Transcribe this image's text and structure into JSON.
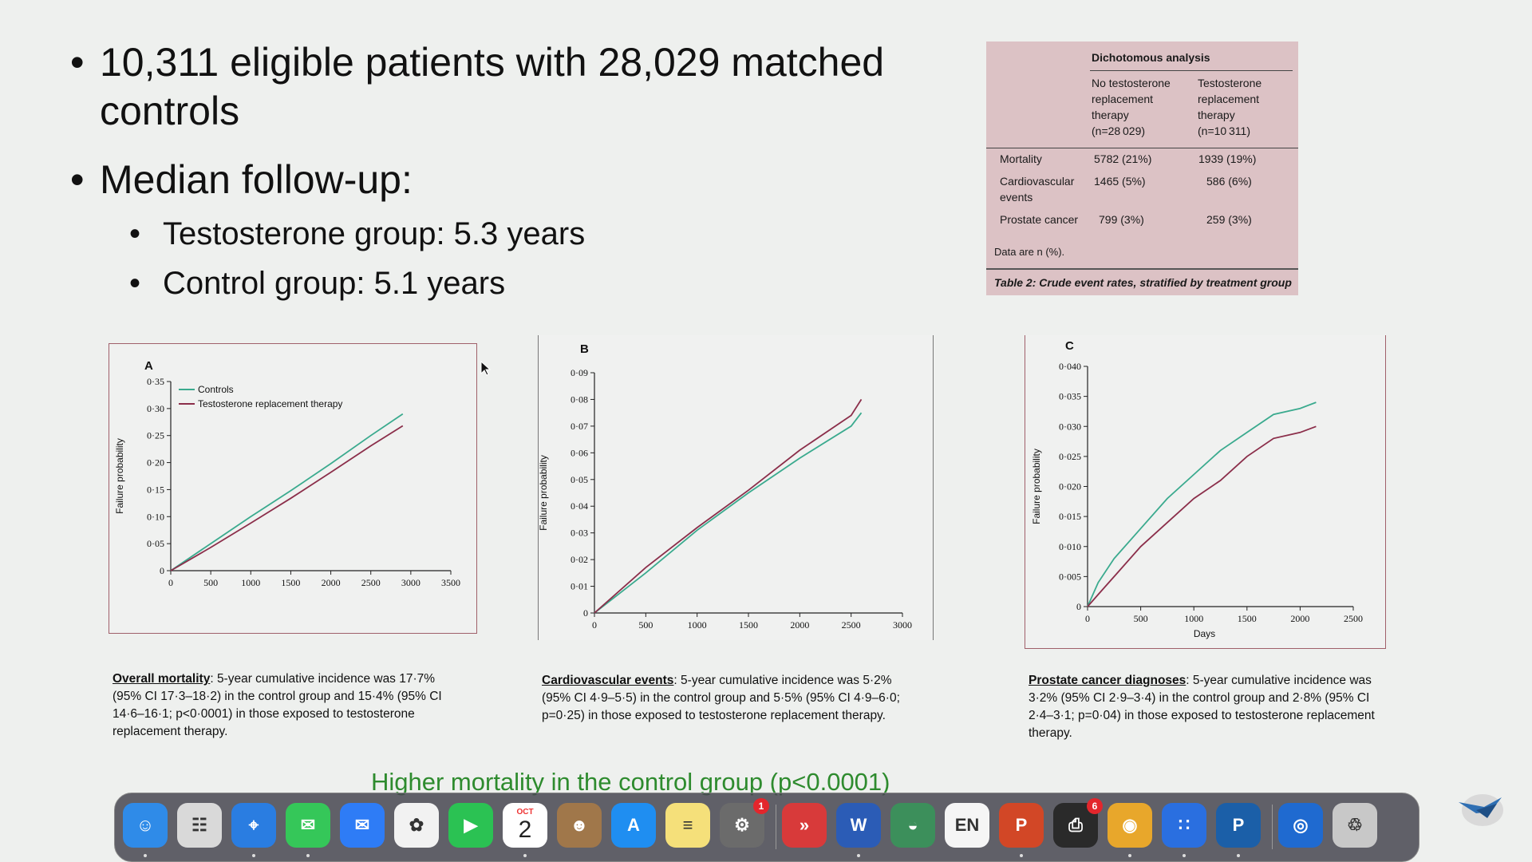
{
  "slide": {
    "bullets": {
      "b1": "10,311 eligible patients with 28,029 matched controls",
      "b2": "Median follow-up:",
      "sub1": "Testosterone group: 5.3 years",
      "sub2": "Control group: 5.1 years"
    },
    "table": {
      "group_header": "Dichotomous analysis",
      "col1": [
        "No testosterone",
        "replacement",
        "therapy",
        "(n=28 029)"
      ],
      "col2": [
        "Testosterone",
        "replacement",
        "therapy",
        "(n=10 311)"
      ],
      "rows": [
        {
          "label": [
            "Mortality"
          ],
          "c1": "5782 (21%)",
          "c2": "1939 (19%)"
        },
        {
          "label": [
            "Cardiovascular",
            "events"
          ],
          "c1": "1465 (5%)",
          "c2": "586 (6%)"
        },
        {
          "label": [
            "Prostate cancer"
          ],
          "c1": "799 (3%)",
          "c2": "259 (3%)"
        }
      ],
      "note": "Data are n (%).",
      "caption_prefix": "Table 2:",
      "caption_text": " Crude event rates, stratified by treatment group"
    },
    "captions": {
      "a_head": "Overall mortality",
      "a_body": ": 5-year cumulative incidence was 17·7% (95% CI 17·3–18·2) in the control group and 15·4% (95% CI 14·6–16·1; p<0·0001) in those exposed to testosterone replacement therapy.",
      "b_head": "Cardiovascular events",
      "b_body": ": 5-year cumulative incidence was 5·2% (95% CI 4·9–5·5) in the control group and 5·5% (95% CI 4·9–6·0; p=0·25) in those exposed to testosterone replacement therapy.",
      "c_head": "Prostate cancer diagnoses",
      "c_body": ": 5-year cumulative incidence was 3·2% (95% CI 2·9–3·4) in the control group and 2·8% (95% CI 2·4–3·1; p=0·04) in those exposed to testosterone replacement therapy."
    },
    "footer_text": "Higher mortality in the control group (p<0.0001)"
  },
  "chart_data": [
    {
      "type": "line",
      "panel_label": "A",
      "ylabel": "Failure probability",
      "xlabel": "",
      "xlim": [
        0,
        3500
      ],
      "ylim": [
        0,
        0.35
      ],
      "xticks": [
        "0",
        "500",
        "1000",
        "1500",
        "2000",
        "2500",
        "3000",
        "3500"
      ],
      "yticks": [
        "0",
        "0·05",
        "0·10",
        "0·15",
        "0·20",
        "0·25",
        "0·30",
        "0·35"
      ],
      "xtick_values": [
        0,
        500,
        1000,
        1500,
        2000,
        2500,
        3000,
        3500
      ],
      "ytick_values": [
        0,
        0.05,
        0.1,
        0.15,
        0.2,
        0.25,
        0.3,
        0.35
      ],
      "legend": "top-left",
      "series": [
        {
          "name": "Controls",
          "color": "#3aaa8e",
          "x": [
            0,
            500,
            1000,
            1500,
            2000,
            2500,
            2900
          ],
          "y": [
            0,
            0.05,
            0.1,
            0.148,
            0.198,
            0.25,
            0.29
          ]
        },
        {
          "name": "Testosterone replacement therapy",
          "color": "#8b2e4a",
          "x": [
            0,
            500,
            1000,
            1500,
            2000,
            2500,
            2900
          ],
          "y": [
            0,
            0.043,
            0.088,
            0.134,
            0.182,
            0.231,
            0.268
          ]
        }
      ]
    },
    {
      "type": "line",
      "panel_label": "B",
      "ylabel": "Failure probability",
      "xlabel": "",
      "xlim": [
        0,
        3000
      ],
      "ylim": [
        0,
        0.09
      ],
      "xticks": [
        "0",
        "500",
        "1000",
        "1500",
        "2000",
        "2500",
        "3000"
      ],
      "yticks": [
        "0",
        "0·01",
        "0·02",
        "0·03",
        "0·04",
        "0·05",
        "0·06",
        "0·07",
        "0·08",
        "0·09"
      ],
      "xtick_values": [
        0,
        500,
        1000,
        1500,
        2000,
        2500,
        3000
      ],
      "ytick_values": [
        0,
        0.01,
        0.02,
        0.03,
        0.04,
        0.05,
        0.06,
        0.07,
        0.08,
        0.09
      ],
      "series": [
        {
          "name": "Controls",
          "color": "#3aaa8e",
          "x": [
            0,
            500,
            1000,
            1500,
            2000,
            2500,
            2600
          ],
          "y": [
            0,
            0.015,
            0.031,
            0.045,
            0.058,
            0.07,
            0.075
          ]
        },
        {
          "name": "Testosterone replacement therapy",
          "color": "#8b2e4a",
          "x": [
            0,
            500,
            1000,
            1500,
            2000,
            2500,
            2600
          ],
          "y": [
            0,
            0.017,
            0.032,
            0.046,
            0.061,
            0.074,
            0.08
          ]
        }
      ]
    },
    {
      "type": "line",
      "panel_label": "C",
      "ylabel": "Failure probability",
      "xlabel": "Days",
      "xlim": [
        0,
        2500
      ],
      "ylim": [
        0,
        0.04
      ],
      "xticks": [
        "0",
        "500",
        "1000",
        "1500",
        "2000",
        "2500"
      ],
      "yticks": [
        "0",
        "0·005",
        "0·010",
        "0·015",
        "0·020",
        "0·025",
        "0·030",
        "0·035",
        "0·040"
      ],
      "xtick_values": [
        0,
        500,
        1000,
        1500,
        2000,
        2500
      ],
      "ytick_values": [
        0,
        0.005,
        0.01,
        0.015,
        0.02,
        0.025,
        0.03,
        0.035,
        0.04
      ],
      "series": [
        {
          "name": "Controls",
          "color": "#3aaa8e",
          "x": [
            0,
            100,
            250,
            500,
            750,
            1000,
            1250,
            1500,
            1750,
            2000,
            2150
          ],
          "y": [
            0,
            0.004,
            0.008,
            0.013,
            0.018,
            0.022,
            0.026,
            0.029,
            0.032,
            0.033,
            0.034
          ]
        },
        {
          "name": "Testosterone replacement therapy",
          "color": "#8b2e4a",
          "x": [
            0,
            100,
            250,
            500,
            750,
            1000,
            1250,
            1500,
            1750,
            2000,
            2150
          ],
          "y": [
            0,
            0.002,
            0.005,
            0.01,
            0.014,
            0.018,
            0.021,
            0.025,
            0.028,
            0.029,
            0.03
          ]
        }
      ]
    }
  ],
  "dock": {
    "items": [
      {
        "name": "finder-icon",
        "color": "#2f8be8",
        "glyph": "☺"
      },
      {
        "name": "launchpad-icon",
        "color": "#d9d9d9",
        "glyph": "☷"
      },
      {
        "name": "safari-icon",
        "color": "#2a7de1",
        "glyph": "⌖"
      },
      {
        "name": "messages-icon",
        "color": "#35c759",
        "glyph": "✉"
      },
      {
        "name": "mail-icon",
        "color": "#2e7cf6",
        "glyph": "✉"
      },
      {
        "name": "photos-icon",
        "color": "#f2f2f2",
        "glyph": "✿"
      },
      {
        "name": "facetime-icon",
        "color": "#2bc253",
        "glyph": "▶"
      },
      {
        "name": "calendar-icon",
        "color": "#ffffff",
        "glyph": "2"
      },
      {
        "name": "contacts-icon",
        "color": "#a0774a",
        "glyph": "☻"
      },
      {
        "name": "app-store-icon",
        "color": "#1f8ef1",
        "glyph": "A"
      },
      {
        "name": "notes-icon",
        "color": "#f5e07a",
        "glyph": "≡"
      },
      {
        "name": "system-settings-icon",
        "color": "#6b6b6b",
        "glyph": "⚙",
        "badge": "1"
      },
      {
        "name": "remote-desktop-icon",
        "color": "#d83a3a",
        "glyph": "»"
      },
      {
        "name": "word-icon",
        "color": "#2b5cb6",
        "glyph": "W"
      },
      {
        "name": "globe-app-icon",
        "color": "#3c8f5b",
        "glyph": "◒"
      },
      {
        "name": "language-input-icon",
        "color": "#f5f5f5",
        "glyph": "EN"
      },
      {
        "name": "powerpoint-icon",
        "color": "#d24726",
        "glyph": "P"
      },
      {
        "name": "printer-icon",
        "color": "#2a2a2a",
        "glyph": "⎙",
        "badge": "6"
      },
      {
        "name": "chrome-icon",
        "color": "#e8a72b",
        "glyph": "◉"
      },
      {
        "name": "dot-grid-app-icon",
        "color": "#2a6fe0",
        "glyph": "∷"
      },
      {
        "name": "powershell-icon",
        "color": "#1b5fa8",
        "glyph": "P"
      },
      {
        "name": "swirl-app-icon",
        "color": "#1f6ad0",
        "glyph": "◎"
      },
      {
        "name": "trash-icon",
        "color": "#c8c8c8",
        "glyph": "♲"
      }
    ],
    "calendar_month": "OCT",
    "calendar_day": "2"
  }
}
